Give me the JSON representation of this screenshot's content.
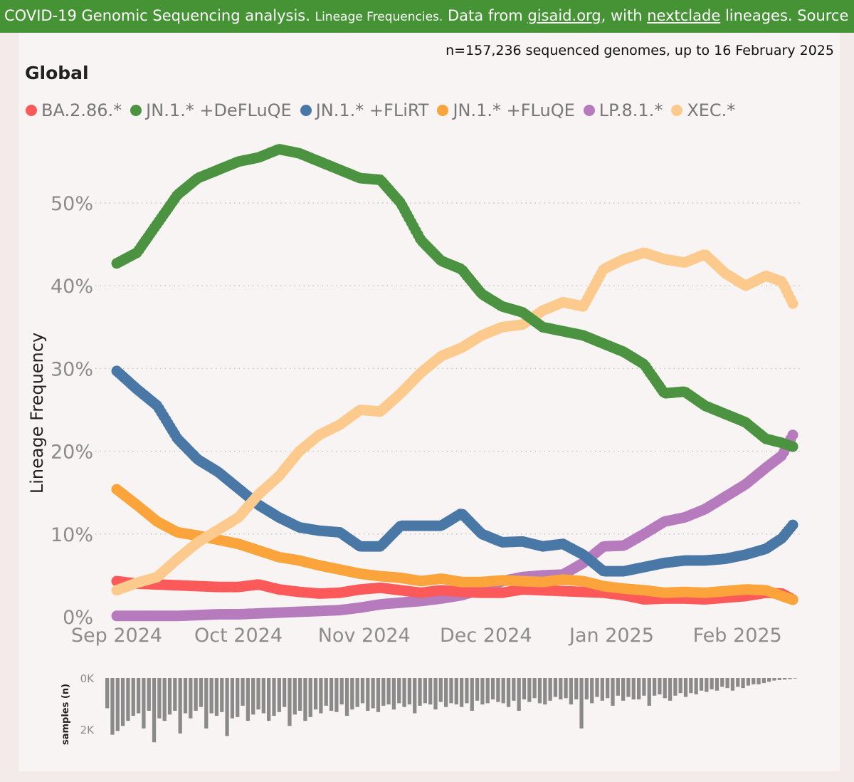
{
  "banner": {
    "title": "COVID-19 Genomic Sequencing analysis.",
    "subtitle": "Lineage Frequencies.",
    "data_from": "Data from",
    "link1": "gisaid.org",
    "with": ", with",
    "link2": "nextclade",
    "lineages": "lineages. Source"
  },
  "header": {
    "n_text": "n=157,236 sequenced genomes, up to 16 February 2025",
    "region": "Global"
  },
  "colors": {
    "BA.2.86.*": "#fc5a5a",
    "JN.1.* +DeFLuQE": "#4b9340",
    "JN.1.* +FLiRT": "#4a78a6",
    "JN.1.* +FLuQE": "#fba43b",
    "LP.8.1.*": "#b67bbd",
    "XEC.*": "#fdca8e"
  },
  "chart_data": {
    "type": "scatter",
    "title": "Lineage Frequencies",
    "ylabel": "Lineage Frequency",
    "xlabel": "",
    "x_range_days": [
      -2,
      168
    ],
    "ylim": [
      0,
      60
    ],
    "yticks": [
      0,
      10,
      20,
      30,
      40,
      50
    ],
    "ytick_labels": [
      "0%",
      "10%",
      "20%",
      "30%",
      "40%",
      "50%"
    ],
    "xticks": [
      0,
      30,
      61,
      91,
      122,
      153
    ],
    "xtick_labels": [
      "Sep 2024",
      "Oct 2024",
      "Nov 2024",
      "Dec 2024",
      "Jan 2025",
      "Feb 2025"
    ],
    "x_start_day": 0,
    "x_end_day": 167,
    "legend": [
      "BA.2.86.*",
      "JN.1.* +DeFLuQE",
      "JN.1.* +FLiRT",
      "JN.1.* +FLuQE",
      "LP.8.1.*",
      "XEC.*"
    ],
    "series": [
      {
        "name": "BA.2.86.*",
        "x": [
          0,
          5,
          10,
          15,
          20,
          25,
          30,
          35,
          40,
          45,
          50,
          55,
          60,
          65,
          70,
          75,
          80,
          85,
          90,
          95,
          100,
          105,
          110,
          115,
          120,
          125,
          130,
          135,
          140,
          145,
          150,
          155,
          160,
          164,
          167
        ],
        "values": [
          4.3,
          4.0,
          3.9,
          3.8,
          3.7,
          3.6,
          3.6,
          3.9,
          3.3,
          3.0,
          2.8,
          2.9,
          3.3,
          3.5,
          3.2,
          2.9,
          3.2,
          3.0,
          2.9,
          2.9,
          3.3,
          3.2,
          3.1,
          3.0,
          2.9,
          2.6,
          2.1,
          2.2,
          2.2,
          2.1,
          2.3,
          2.5,
          2.9,
          2.8,
          2.0
        ]
      },
      {
        "name": "JN.1.* +DeFLuQE",
        "x": [
          0,
          5,
          10,
          15,
          20,
          25,
          30,
          35,
          40,
          45,
          50,
          55,
          60,
          65,
          70,
          75,
          80,
          85,
          90,
          95,
          100,
          105,
          110,
          115,
          120,
          125,
          130,
          135,
          140,
          145,
          150,
          155,
          160,
          164,
          167
        ],
        "values": [
          42.7,
          44.0,
          47.5,
          51.0,
          53.0,
          54.0,
          55.0,
          55.5,
          56.5,
          56.0,
          55.0,
          54.0,
          53.0,
          52.8,
          50.0,
          45.5,
          43.0,
          42.0,
          39.0,
          37.5,
          36.8,
          35.0,
          34.5,
          34.0,
          33.0,
          32.0,
          30.5,
          27.0,
          27.2,
          25.5,
          24.5,
          23.5,
          21.5,
          21.0,
          20.5
        ]
      },
      {
        "name": "JN.1.* +FLiRT",
        "x": [
          0,
          5,
          10,
          15,
          20,
          25,
          30,
          35,
          40,
          45,
          50,
          55,
          60,
          65,
          70,
          75,
          80,
          85,
          90,
          95,
          100,
          105,
          110,
          115,
          120,
          125,
          130,
          135,
          140,
          145,
          150,
          155,
          160,
          164,
          167
        ],
        "values": [
          29.7,
          27.5,
          25.5,
          21.5,
          19.0,
          17.5,
          15.5,
          13.5,
          12.0,
          10.8,
          10.4,
          10.2,
          8.5,
          8.5,
          11.0,
          11.0,
          11.0,
          12.5,
          10.0,
          9.0,
          9.1,
          8.5,
          8.8,
          7.5,
          5.5,
          5.5,
          6.0,
          6.5,
          6.8,
          6.8,
          7.0,
          7.5,
          8.2,
          9.5,
          11.3
        ]
      },
      {
        "name": "JN.1.* +FLuQE",
        "x": [
          0,
          5,
          10,
          15,
          20,
          25,
          30,
          35,
          40,
          45,
          50,
          55,
          60,
          65,
          70,
          75,
          80,
          85,
          90,
          95,
          100,
          105,
          110,
          115,
          120,
          125,
          130,
          135,
          140,
          145,
          150,
          155,
          160,
          164,
          167
        ],
        "values": [
          15.4,
          13.5,
          11.5,
          10.2,
          9.8,
          9.3,
          8.8,
          8.0,
          7.2,
          6.8,
          6.2,
          5.7,
          5.2,
          4.9,
          4.7,
          4.3,
          4.6,
          4.2,
          4.2,
          4.4,
          4.3,
          4.2,
          4.5,
          4.3,
          3.7,
          3.4,
          3.2,
          2.9,
          3.0,
          2.9,
          3.1,
          3.3,
          3.2,
          2.5,
          2.0
        ]
      },
      {
        "name": "LP.8.1.*",
        "x": [
          0,
          5,
          10,
          15,
          20,
          25,
          30,
          35,
          40,
          45,
          50,
          55,
          60,
          65,
          70,
          75,
          80,
          85,
          90,
          95,
          100,
          105,
          110,
          115,
          120,
          125,
          130,
          135,
          140,
          145,
          150,
          155,
          160,
          164,
          167
        ],
        "values": [
          0.1,
          0.1,
          0.1,
          0.1,
          0.2,
          0.3,
          0.3,
          0.4,
          0.5,
          0.6,
          0.7,
          0.8,
          1.1,
          1.5,
          1.7,
          1.9,
          2.2,
          2.6,
          3.3,
          4.3,
          4.8,
          5.0,
          5.1,
          6.5,
          8.5,
          8.6,
          10.0,
          11.5,
          12.0,
          13.0,
          14.5,
          16.0,
          18.0,
          19.5,
          22.3
        ]
      },
      {
        "name": "XEC.*",
        "x": [
          0,
          5,
          10,
          15,
          20,
          25,
          30,
          35,
          40,
          45,
          50,
          55,
          60,
          65,
          70,
          75,
          80,
          85,
          90,
          95,
          100,
          105,
          110,
          115,
          120,
          125,
          130,
          135,
          140,
          145,
          150,
          155,
          160,
          164,
          167
        ],
        "values": [
          3.2,
          4.1,
          4.8,
          7.0,
          9.0,
          10.5,
          12.0,
          14.8,
          17.0,
          20.0,
          22.0,
          23.2,
          25.0,
          24.8,
          27.0,
          29.5,
          31.5,
          32.5,
          34.0,
          35.0,
          35.3,
          37.0,
          38.0,
          37.5,
          42.0,
          43.2,
          44.0,
          43.2,
          42.8,
          43.8,
          41.5,
          40.0,
          41.2,
          40.5,
          37.5
        ]
      }
    ],
    "samples_panel": {
      "ylabel": "samples (n)",
      "tick_labels": [
        "0K",
        "2K"
      ],
      "ylim": [
        0,
        2600
      ],
      "values": [
        1200,
        2250,
        2100,
        1900,
        1700,
        1500,
        1400,
        2000,
        1300,
        2550,
        1600,
        1700,
        1450,
        1300,
        2200,
        1400,
        1600,
        1300,
        1150,
        2000,
        1400,
        1500,
        1350,
        2300,
        1600,
        1550,
        1100,
        1700,
        1450,
        1250,
        1400,
        1700,
        1500,
        1350,
        1150,
        1900,
        1450,
        1300,
        1700,
        1550,
        1250,
        1400,
        1100,
        1300,
        1350,
        1050,
        1500,
        1250,
        1150,
        1000,
        1300,
        1200,
        1350,
        1100,
        1050,
        1250,
        1000,
        1150,
        1050,
        1400,
        1100,
        1000,
        1050,
        1250,
        950,
        1150,
        1000,
        1050,
        1150,
        1000,
        1300,
        900,
        1050,
        1000,
        850,
        950,
        1000,
        1150,
        900,
        1300,
        850,
        950,
        800,
        1000,
        1050,
        900,
        750,
        850,
        800,
        1050,
        850,
        2000,
        850,
        1000,
        750,
        900,
        800,
        1100,
        700,
        900,
        750,
        850,
        850,
        700,
        1100,
        700,
        650,
        800,
        900,
        700,
        600,
        750,
        600,
        650,
        500,
        550,
        450,
        500,
        350,
        400,
        500,
        350,
        400,
        300,
        250,
        250,
        200,
        150,
        100,
        80,
        60,
        40,
        20
      ]
    }
  }
}
